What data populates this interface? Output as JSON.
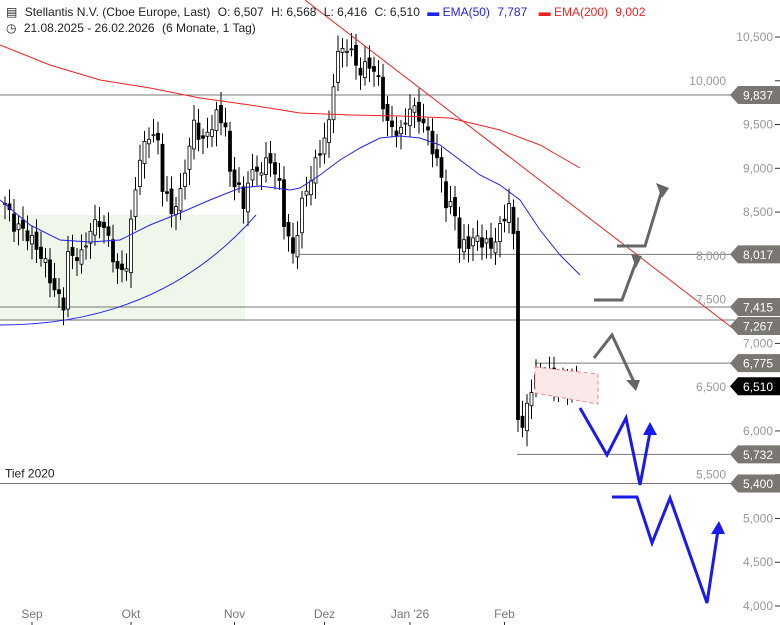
{
  "header": {
    "title": "Stellantis N.V. (Cboe Europe, Last)",
    "open": "O: 6,507",
    "high": "H: 6,568",
    "low": "L: 6,416",
    "close": "C: 6,510",
    "ema50_label": "EMA(50)",
    "ema50_value": "7,787",
    "ema200_label": "EMA(200)",
    "ema200_value": "9,002",
    "range": "21.08.2025 - 26.02.2026",
    "period": "(6 Monate, 1 Tag)"
  },
  "colors": {
    "ema50": "#2222ee",
    "ema200": "#ee2222",
    "tag": "#7a7672",
    "last": "#000000",
    "arrow_blue": "#1a1aee",
    "arrow_grey": "#666666"
  },
  "chart_data": {
    "type": "candlestick",
    "title": "Stellantis N.V. (Cboe Europe, Last)",
    "ylim": [
      4.0,
      10.6
    ],
    "yticks": [
      "10,500",
      "10,000",
      "9,500",
      "9,000",
      "8,500",
      "8,000",
      "7,500",
      "7,000",
      "6,500",
      "6,000",
      "5,500",
      "5,000",
      "4,500",
      "4,000"
    ],
    "ytick_values": [
      10.5,
      10.0,
      9.5,
      9.0,
      8.5,
      8.0,
      7.5,
      7.0,
      6.5,
      6.0,
      5.5,
      5.0,
      4.5,
      4.0
    ],
    "xticks": [
      {
        "label": "Sep",
        "day": 6
      },
      {
        "label": "Okt",
        "day": 28
      },
      {
        "label": "Nov",
        "day": 51
      },
      {
        "label": "Dez",
        "day": 71
      },
      {
        "label": "Jan '26",
        "day": 90
      },
      {
        "label": "Feb",
        "day": 111
      }
    ],
    "days": 128,
    "close_keyframes": [
      [
        0,
        8.6
      ],
      [
        2,
        8.35
      ],
      [
        4,
        8.3
      ],
      [
        7,
        8.1
      ],
      [
        9,
        7.9
      ],
      [
        11,
        7.6
      ],
      [
        13,
        7.45
      ],
      [
        14,
        8.0
      ],
      [
        17,
        8.0
      ],
      [
        19,
        8.3
      ],
      [
        21,
        8.4
      ],
      [
        23,
        8.2
      ],
      [
        25,
        7.8
      ],
      [
        27,
        7.9
      ],
      [
        29,
        8.8
      ],
      [
        30,
        9.1
      ],
      [
        32,
        9.4
      ],
      [
        34,
        9.3
      ],
      [
        35,
        8.8
      ],
      [
        37,
        8.5
      ],
      [
        39,
        8.7
      ],
      [
        40,
        9.0
      ],
      [
        42,
        9.5
      ],
      [
        44,
        9.3
      ],
      [
        47,
        9.6
      ],
      [
        49,
        9.5
      ],
      [
        50,
        8.9
      ],
      [
        52,
        8.8
      ],
      [
        53,
        8.5
      ],
      [
        54,
        8.9
      ],
      [
        57,
        9.0
      ],
      [
        59,
        9.1
      ],
      [
        61,
        8.8
      ],
      [
        62,
        8.4
      ],
      [
        63,
        8.2
      ],
      [
        64,
        8.0
      ],
      [
        66,
        8.6
      ],
      [
        68,
        8.9
      ],
      [
        70,
        9.2
      ],
      [
        72,
        9.5
      ],
      [
        73,
        10.0
      ],
      [
        74,
        10.3
      ],
      [
        76,
        10.4
      ],
      [
        79,
        10.1
      ],
      [
        81,
        10.2
      ],
      [
        83,
        10.0
      ],
      [
        85,
        9.5
      ],
      [
        88,
        9.4
      ],
      [
        90,
        9.7
      ],
      [
        92,
        9.6
      ],
      [
        94,
        9.4
      ],
      [
        97,
        8.9
      ],
      [
        98,
        8.6
      ],
      [
        100,
        8.5
      ],
      [
        101,
        8.1
      ],
      [
        103,
        8.15
      ],
      [
        105,
        8.2
      ],
      [
        108,
        8.1
      ],
      [
        110,
        8.3
      ],
      [
        112,
        8.6
      ],
      [
        113,
        8.2
      ],
      [
        114,
        6.2
      ],
      [
        115,
        6.0
      ],
      [
        116,
        6.3
      ],
      [
        117,
        6.5
      ],
      [
        119,
        6.65
      ],
      [
        121,
        6.6
      ],
      [
        124,
        6.5
      ],
      [
        126,
        6.55
      ],
      [
        127,
        6.51
      ]
    ],
    "levels": [
      {
        "value": 9.837,
        "label": "9,837"
      },
      {
        "value": 8.017,
        "label": "8,017"
      },
      {
        "value": 7.415,
        "label": "7,415"
      },
      {
        "value": 7.267,
        "label": "7,267"
      },
      {
        "value": 6.775,
        "label": "6,775"
      },
      {
        "value": 5.732,
        "label": "5,732"
      },
      {
        "value": 5.4,
        "label": "5,400",
        "annotation": "Tief 2020"
      }
    ],
    "last": {
      "value": 6.51,
      "label": "6,510"
    },
    "series": [
      {
        "name": "EMA(50)",
        "last": 7.787
      },
      {
        "name": "EMA(200)",
        "last": 9.002
      }
    ]
  }
}
